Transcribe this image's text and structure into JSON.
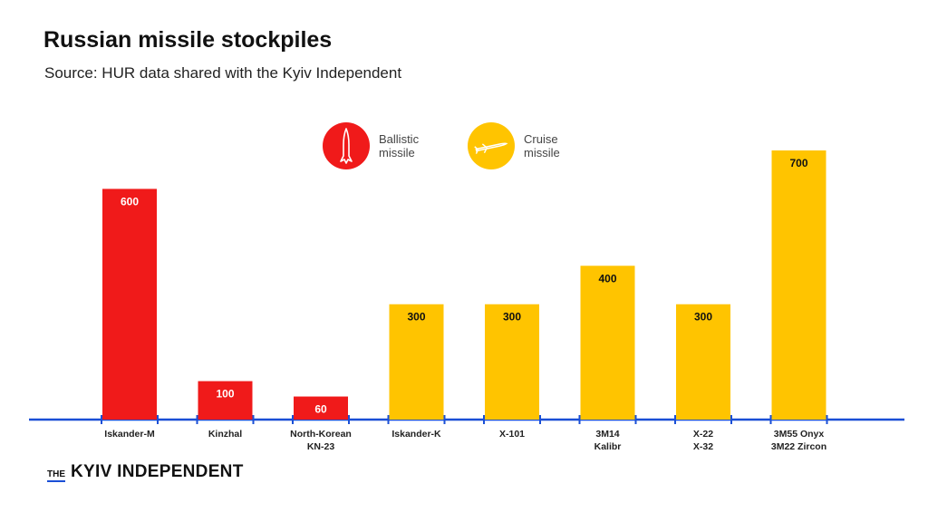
{
  "header": {
    "title": "Russian missile stockpiles",
    "subtitle": "Source: HUR data shared with the Kyiv Independent"
  },
  "legend": {
    "ballistic": {
      "line1": "Ballistic",
      "line2": "missile",
      "color": "#f01a1a",
      "icon": "ballistic-missile-icon"
    },
    "cruise": {
      "line1": "Cruise",
      "line2": "missile",
      "color": "#ffc400",
      "icon": "cruise-missile-icon"
    }
  },
  "logo": {
    "prefix": "THE",
    "name": "KYIV INDEPENDENT"
  },
  "colors": {
    "axis": "#1a4fd6",
    "ballistic": "#f01a1a",
    "cruise": "#ffc400"
  },
  "chart_data": {
    "type": "bar",
    "title": "Russian missile stockpiles",
    "subtitle": "Source: HUR data shared with the Kyiv Independent",
    "xlabel": "",
    "ylabel": "",
    "ylim": [
      0,
      700
    ],
    "categories": [
      [
        "Iskander-M"
      ],
      [
        "Kinzhal"
      ],
      [
        "North-Korean",
        "KN-23"
      ],
      [
        "Iskander-K"
      ],
      [
        "X-101"
      ],
      [
        "3M14",
        "Kalibr"
      ],
      [
        "X-22",
        "X-32"
      ],
      [
        "3M55 Onyx",
        "3M22 Zircon"
      ]
    ],
    "values": [
      600,
      100,
      60,
      300,
      300,
      400,
      300,
      700
    ],
    "missile_type": [
      "ballistic",
      "ballistic",
      "ballistic",
      "cruise",
      "cruise",
      "cruise",
      "cruise",
      "cruise"
    ],
    "legend": [
      "Ballistic missile",
      "Cruise missile"
    ],
    "grid": false
  }
}
